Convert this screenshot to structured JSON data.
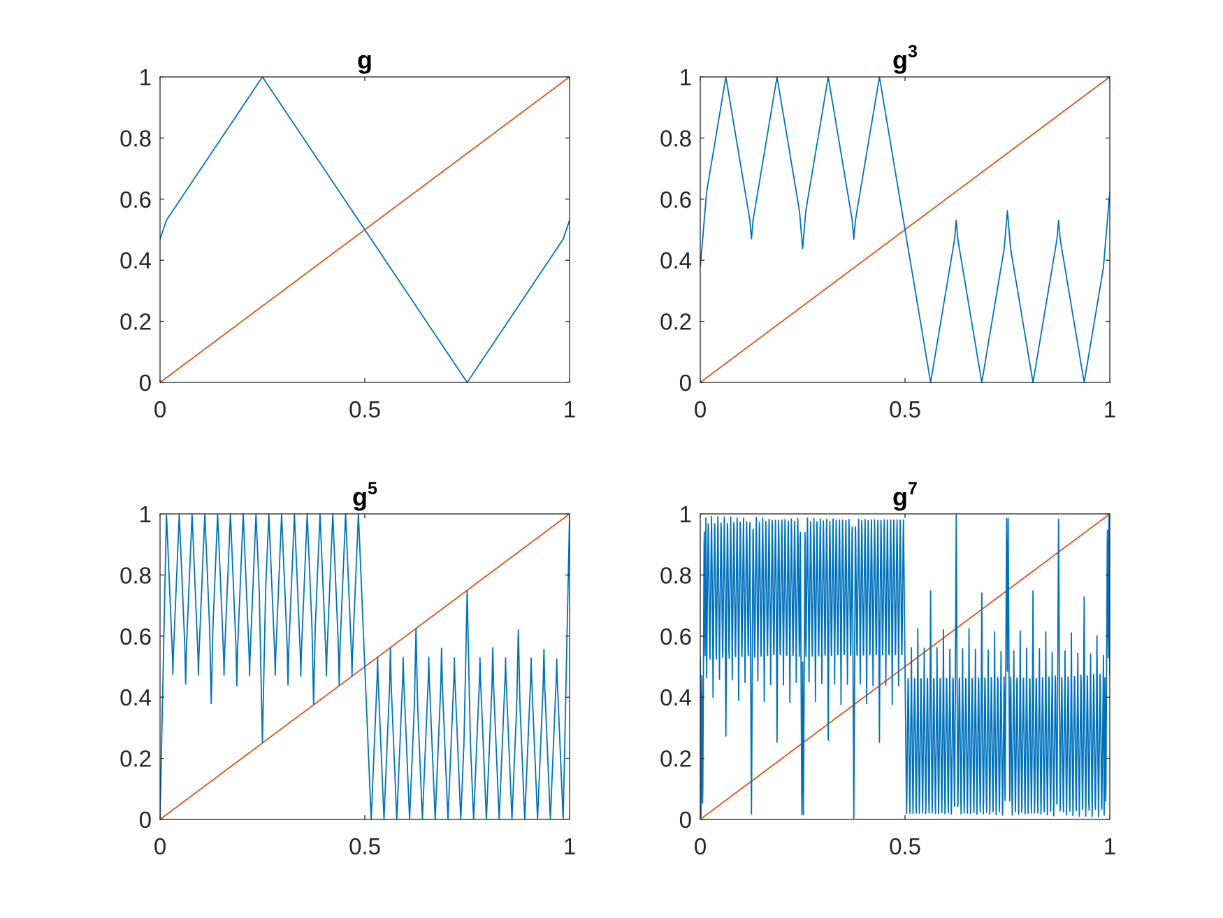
{
  "figure": {
    "colors": {
      "curve": "#0072BD",
      "identity": "#D95319",
      "axes": "#262626",
      "background": "#ffffff"
    },
    "xticks": [
      0,
      0.5,
      1
    ],
    "xtick_labels": [
      "0",
      "0.5",
      "1"
    ],
    "yticks": [
      0,
      0.2,
      0.4,
      0.6,
      0.8,
      1
    ],
    "ytick_labels": [
      "0",
      "0.2",
      "0.4",
      "0.6",
      "0.8",
      "1"
    ]
  },
  "chart_data": [
    {
      "type": "line",
      "title": "g",
      "title_base": "g",
      "title_exponent": "",
      "iterations": 1,
      "xlim": [
        0,
        1
      ],
      "ylim": [
        0,
        1
      ],
      "series": [
        {
          "role": "iterate",
          "color": "#0072BD",
          "x": [
            0,
            0.0156,
            0.25,
            0.75,
            0.9844,
            1
          ],
          "y": [
            0.469,
            0.531,
            1,
            0,
            0.469,
            0.531
          ]
        },
        {
          "role": "identity",
          "color": "#D95319",
          "x": [
            0,
            1
          ],
          "y": [
            0,
            1
          ]
        }
      ]
    },
    {
      "type": "line",
      "title": "g3",
      "title_base": "g",
      "title_exponent": "3",
      "iterations": 3,
      "xlim": [
        0,
        1
      ],
      "ylim": [
        0,
        1
      ],
      "series": [
        {
          "role": "iterate",
          "color": "#0072BD",
          "generated_from": "g"
        },
        {
          "role": "identity",
          "color": "#D95319",
          "x": [
            0,
            1
          ],
          "y": [
            0,
            1
          ]
        }
      ]
    },
    {
      "type": "line",
      "title": "g5",
      "title_base": "g",
      "title_exponent": "5",
      "iterations": 5,
      "xlim": [
        0,
        1
      ],
      "ylim": [
        0,
        1
      ],
      "series": [
        {
          "role": "iterate",
          "color": "#0072BD",
          "generated_from": "g"
        },
        {
          "role": "identity",
          "color": "#D95319",
          "x": [
            0,
            1
          ],
          "y": [
            0,
            1
          ]
        }
      ]
    },
    {
      "type": "line",
      "title": "g7",
      "title_base": "g",
      "title_exponent": "7",
      "iterations": 7,
      "xlim": [
        0,
        1
      ],
      "ylim": [
        0,
        1
      ],
      "series": [
        {
          "role": "iterate",
          "color": "#0072BD",
          "generated_from": "g"
        },
        {
          "role": "identity",
          "color": "#D95319",
          "x": [
            0,
            1
          ],
          "y": [
            0,
            1
          ]
        }
      ]
    }
  ]
}
